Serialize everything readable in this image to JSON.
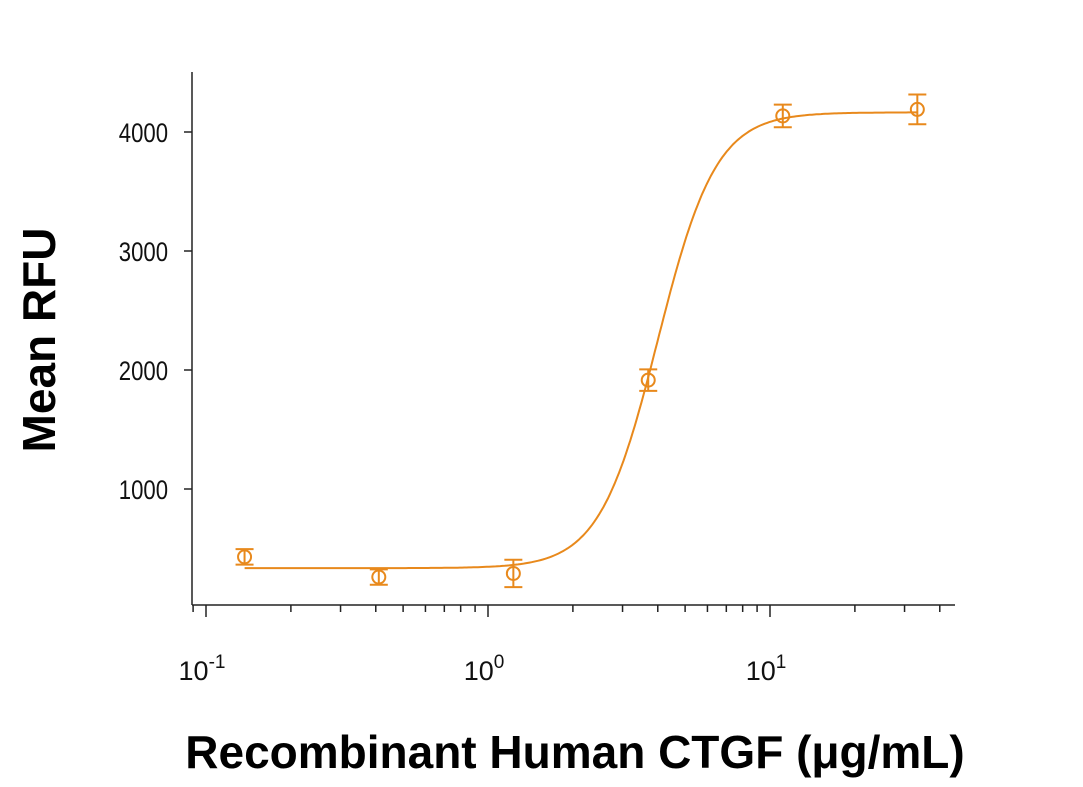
{
  "chart_data": {
    "type": "scatter",
    "title": "",
    "xlabel": "Recombinant Human CTGF (μg/mL)",
    "ylabel": "Mean RFU",
    "xscale": "log",
    "xlim": [
      0.089,
      45
    ],
    "ylim": [
      0,
      4500
    ],
    "grid": false,
    "legend": "none",
    "color": "#E8891C",
    "x_ticks": [
      {
        "value": 0.1,
        "base": "10",
        "exp": "-1"
      },
      {
        "value": 1,
        "base": "10",
        "exp": "0"
      },
      {
        "value": 10,
        "base": "10",
        "exp": "1"
      }
    ],
    "y_ticks": [
      {
        "value": 1000,
        "label": "1000"
      },
      {
        "value": 2000,
        "label": "2000"
      },
      {
        "value": 3000,
        "label": "3000"
      },
      {
        "value": 4000,
        "label": "4000"
      }
    ],
    "series": [
      {
        "name": "CTGF",
        "x": [
          0.137,
          0.41,
          1.23,
          3.7,
          11.1,
          33.3
        ],
        "y": [
          430,
          260,
          290,
          1915,
          4135,
          4190
        ],
        "error": [
          65,
          65,
          115,
          90,
          95,
          125
        ]
      }
    ],
    "fit": {
      "model": "4PL",
      "bottom": 335,
      "top": 4165,
      "ec50": 4.0,
      "hill": 4.2
    }
  }
}
